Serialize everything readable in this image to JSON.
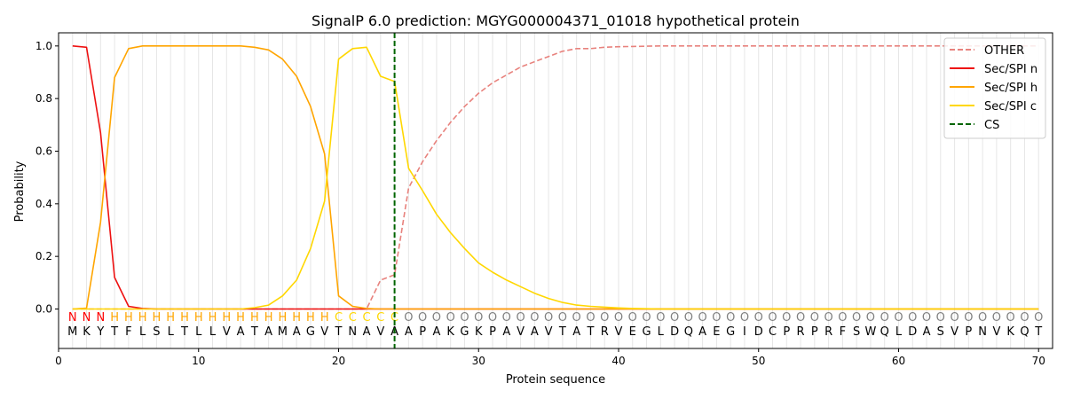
{
  "chart_data": {
    "type": "line",
    "title": "SignalP 6.0 prediction: MGYG000004371_01018 hypothetical protein",
    "xlabel": "Protein sequence",
    "ylabel": "Probability",
    "xlim": [
      0,
      71
    ],
    "ylim": [
      -0.15,
      1.05
    ],
    "x_ticks": [
      0,
      10,
      20,
      30,
      40,
      50,
      60,
      70
    ],
    "y_ticks": [
      0.0,
      0.2,
      0.4,
      0.6,
      0.8,
      1.0
    ],
    "x_tick_labels": [
      "0",
      "10",
      "20",
      "30",
      "40",
      "50",
      "60",
      "70"
    ],
    "y_tick_labels": [
      "0.0",
      "0.2",
      "0.4",
      "0.6",
      "0.8",
      "1.0"
    ],
    "grid": "vertical lines at each residue",
    "legend_position": "top-right",
    "sequence": [
      "M",
      "K",
      "Y",
      "T",
      "F",
      "L",
      "S",
      "L",
      "T",
      "L",
      "L",
      "V",
      "A",
      "T",
      "A",
      "M",
      "A",
      "G",
      "V",
      "T",
      "N",
      "A",
      "V",
      "A",
      "A",
      "P",
      "A",
      "K",
      "G",
      "K",
      "P",
      "A",
      "V",
      "A",
      "V",
      "T",
      "A",
      "T",
      "R",
      "V",
      "E",
      "G",
      "L",
      "D",
      "Q",
      "A",
      "E",
      "G",
      "I",
      "D",
      "C",
      "P",
      "R",
      "P",
      "R",
      "F",
      "S",
      "W",
      "Q",
      "L",
      "D",
      "A",
      "S",
      "V",
      "P",
      "N",
      "V",
      "K",
      "Q",
      "T"
    ],
    "region_labels": [
      "N",
      "N",
      "N",
      "H",
      "H",
      "H",
      "H",
      "H",
      "H",
      "H",
      "H",
      "H",
      "H",
      "H",
      "H",
      "H",
      "H",
      "H",
      "H",
      "C",
      "C",
      "C",
      "C",
      "C",
      "O",
      "O",
      "O",
      "O",
      "O",
      "O",
      "O",
      "O",
      "O",
      "O",
      "O",
      "O",
      "O",
      "O",
      "O",
      "O",
      "O",
      "O",
      "O",
      "O",
      "O",
      "O",
      "O",
      "O",
      "O",
      "O",
      "O",
      "O",
      "O",
      "O",
      "O",
      "O",
      "O",
      "O",
      "O",
      "O",
      "O",
      "O",
      "O",
      "O",
      "O",
      "O",
      "O",
      "O",
      "O",
      "O"
    ],
    "region_colors": {
      "N": "#ff0000",
      "H": "#ffa500",
      "C": "#ffd700",
      "O": "#808080"
    },
    "series": [
      {
        "name": "OTHER",
        "color": "#e8827d",
        "style": "dashed",
        "values": [
          0,
          0,
          0,
          0,
          0,
          0,
          0,
          0,
          0,
          0,
          0,
          0,
          0,
          0,
          0,
          0,
          0,
          0,
          0,
          0,
          0,
          0,
          0.11,
          0.13,
          0.46,
          0.56,
          0.64,
          0.71,
          0.77,
          0.82,
          0.86,
          0.89,
          0.92,
          0.94,
          0.96,
          0.98,
          0.99,
          0.99,
          0.995,
          0.997,
          0.998,
          0.999,
          1,
          1,
          1,
          1,
          1,
          1,
          1,
          1,
          1,
          1,
          1,
          1,
          1,
          1,
          1,
          1,
          1,
          1,
          1,
          1,
          1,
          1,
          1,
          1,
          1,
          1,
          1,
          1
        ]
      },
      {
        "name": "Sec/SPI n",
        "color": "#ee1111",
        "style": "solid",
        "values": [
          1.0,
          0.995,
          0.67,
          0.12,
          0.01,
          0.002,
          0,
          0,
          0,
          0,
          0,
          0,
          0,
          0,
          0,
          0,
          0,
          0,
          0,
          0,
          0,
          0,
          0,
          0,
          0,
          0,
          0,
          0,
          0,
          0,
          0,
          0,
          0,
          0,
          0,
          0,
          0,
          0,
          0,
          0,
          0,
          0,
          0,
          0,
          0,
          0,
          0,
          0,
          0,
          0,
          0,
          0,
          0,
          0,
          0,
          0,
          0,
          0,
          0,
          0,
          0,
          0,
          0,
          0,
          0,
          0,
          0,
          0,
          0,
          0
        ]
      },
      {
        "name": "Sec/SPI h",
        "color": "#ffa500",
        "style": "solid",
        "values": [
          0,
          0.003,
          0.33,
          0.88,
          0.99,
          1.0,
          1.0,
          1.0,
          1.0,
          1.0,
          1.0,
          1.0,
          1.0,
          0.995,
          0.985,
          0.95,
          0.885,
          0.77,
          0.59,
          0.05,
          0.01,
          0.002,
          0,
          0,
          0,
          0,
          0,
          0,
          0,
          0,
          0,
          0,
          0,
          0,
          0,
          0,
          0,
          0,
          0,
          0,
          0,
          0,
          0,
          0,
          0,
          0,
          0,
          0,
          0,
          0,
          0,
          0,
          0,
          0,
          0,
          0,
          0,
          0,
          0,
          0,
          0,
          0,
          0,
          0,
          0,
          0,
          0,
          0,
          0,
          0
        ]
      },
      {
        "name": "Sec/SPI c",
        "color": "#ffd700",
        "style": "solid",
        "values": [
          0,
          0,
          0,
          0,
          0,
          0,
          0,
          0,
          0,
          0,
          0,
          0,
          0,
          0.005,
          0.015,
          0.05,
          0.11,
          0.23,
          0.41,
          0.95,
          0.99,
          0.995,
          0.885,
          0.865,
          0.535,
          0.45,
          0.36,
          0.29,
          0.23,
          0.175,
          0.14,
          0.11,
          0.085,
          0.06,
          0.04,
          0.025,
          0.015,
          0.01,
          0.007,
          0.004,
          0.002,
          0.001,
          0,
          0,
          0,
          0,
          0,
          0,
          0,
          0,
          0,
          0,
          0,
          0,
          0,
          0,
          0,
          0,
          0,
          0,
          0,
          0,
          0,
          0,
          0,
          0,
          0,
          0,
          0,
          0
        ]
      }
    ],
    "cleavage_site": {
      "name": "CS",
      "x": 24,
      "color": "#006400",
      "style": "dashed"
    }
  }
}
